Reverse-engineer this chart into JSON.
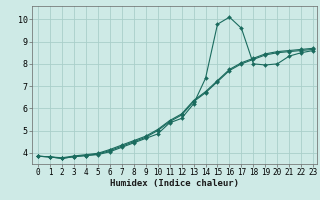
{
  "xlabel": "Humidex (Indice chaleur)",
  "ylabel": "",
  "background_color": "#ceeae6",
  "grid_color": "#aacfca",
  "line_color": "#1a6b5e",
  "xlim": [
    -0.5,
    23.3
  ],
  "ylim": [
    3.5,
    10.6
  ],
  "yticks": [
    4,
    5,
    6,
    7,
    8,
    9,
    10
  ],
  "xticks": [
    0,
    1,
    2,
    3,
    4,
    5,
    6,
    7,
    8,
    9,
    10,
    11,
    12,
    13,
    14,
    15,
    16,
    17,
    18,
    19,
    20,
    21,
    22,
    23
  ],
  "series1_x": [
    0,
    1,
    2,
    3,
    4,
    5,
    6,
    7,
    8,
    9,
    10,
    11,
    12,
    13,
    14,
    15,
    16,
    17,
    18,
    19,
    20,
    21,
    22,
    23
  ],
  "series1_y": [
    3.85,
    3.82,
    3.75,
    3.83,
    3.88,
    3.92,
    4.05,
    4.25,
    4.45,
    4.65,
    4.85,
    5.35,
    5.55,
    6.2,
    7.35,
    9.78,
    10.1,
    9.6,
    8.0,
    7.95,
    8.0,
    8.35,
    8.5,
    8.6
  ],
  "series2_x": [
    0,
    1,
    2,
    3,
    4,
    5,
    6,
    7,
    8,
    9,
    10,
    11,
    12,
    13,
    14,
    15,
    16,
    17,
    18,
    19,
    20,
    21,
    22,
    23
  ],
  "series2_y": [
    3.85,
    3.82,
    3.75,
    3.83,
    3.88,
    3.95,
    4.1,
    4.3,
    4.5,
    4.7,
    5.0,
    5.4,
    5.7,
    6.3,
    6.7,
    7.2,
    7.7,
    8.0,
    8.2,
    8.4,
    8.5,
    8.55,
    8.6,
    8.65
  ],
  "series3_x": [
    0,
    1,
    2,
    3,
    4,
    5,
    6,
    7,
    8,
    9,
    10,
    11,
    12,
    13,
    14,
    15,
    16,
    17,
    18,
    19,
    20,
    21,
    22,
    23
  ],
  "series3_y": [
    3.85,
    3.82,
    3.78,
    3.86,
    3.92,
    3.98,
    4.15,
    4.35,
    4.55,
    4.75,
    5.05,
    5.45,
    5.75,
    6.35,
    6.75,
    7.25,
    7.75,
    8.05,
    8.25,
    8.45,
    8.55,
    8.6,
    8.65,
    8.7
  ],
  "tick_fontsize": 5.5,
  "xlabel_fontsize": 6.5,
  "marker_size": 2.0,
  "line_width": 0.8
}
